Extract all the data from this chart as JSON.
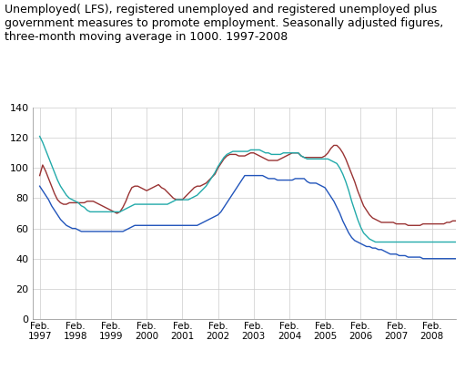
{
  "title_line1": "Unemployed( LFS), registered unemployed and registered unemployed plus",
  "title_line2": "government measures to promote employment. Seasonally adjusted figures,",
  "title_line3": "three-month moving average in 1000. 1997-2008",
  "title_fontsize": 9.0,
  "colors": {
    "registered_unemployed": "#2255BB",
    "lfs": "#993333",
    "registered_plus_gov": "#22AAAA"
  },
  "legend_labels": [
    "Registered\nunemployed",
    "Unemployed( LFS)",
    "Registered unemployed +\ngovernment measures"
  ],
  "ylim": [
    0,
    140
  ],
  "yticks": [
    0,
    20,
    40,
    60,
    80,
    100,
    120,
    140
  ],
  "grid_color": "#cccccc",
  "registered_unemployed": [
    88,
    85,
    82,
    79,
    75,
    72,
    69,
    66,
    64,
    62,
    61,
    60,
    60,
    59,
    58,
    58,
    58,
    58,
    58,
    58,
    58,
    58,
    58,
    58,
    58,
    58,
    58,
    58,
    58,
    59,
    60,
    61,
    62,
    62,
    62,
    62,
    62,
    62,
    62,
    62,
    62,
    62,
    62,
    62,
    62,
    62,
    62,
    62,
    62,
    62,
    62,
    62,
    62,
    62,
    63,
    64,
    65,
    66,
    67,
    68,
    69,
    71,
    74,
    77,
    80,
    83,
    86,
    89,
    92,
    95,
    95,
    95,
    95,
    95,
    95,
    95,
    94,
    93,
    93,
    93,
    92,
    92,
    92,
    92,
    92,
    92,
    93,
    93,
    93,
    93,
    91,
    90,
    90,
    90,
    89,
    88,
    87,
    84,
    81,
    78,
    74,
    70,
    65,
    61,
    57,
    54,
    52,
    51,
    50,
    49,
    48,
    48,
    47,
    47,
    46,
    46,
    45,
    44,
    43,
    43,
    43,
    42,
    42,
    42,
    41,
    41,
    41,
    41,
    41,
    40,
    40,
    40,
    40,
    40,
    40,
    40,
    40,
    40,
    40,
    40,
    40,
    40,
    40,
    40
  ],
  "lfs": [
    95,
    102,
    98,
    93,
    88,
    83,
    79,
    77,
    76,
    76,
    77,
    77,
    77,
    77,
    77,
    77,
    78,
    78,
    78,
    77,
    76,
    75,
    74,
    73,
    72,
    71,
    70,
    71,
    74,
    78,
    83,
    87,
    88,
    88,
    87,
    86,
    85,
    86,
    87,
    88,
    89,
    87,
    86,
    84,
    82,
    80,
    79,
    79,
    79,
    81,
    83,
    85,
    87,
    88,
    88,
    89,
    90,
    92,
    94,
    96,
    100,
    103,
    106,
    108,
    109,
    109,
    109,
    108,
    108,
    108,
    109,
    110,
    110,
    109,
    108,
    107,
    106,
    105,
    105,
    105,
    105,
    106,
    107,
    108,
    109,
    110,
    110,
    110,
    108,
    107,
    107,
    107,
    107,
    107,
    107,
    107,
    108,
    110,
    113,
    115,
    115,
    113,
    110,
    106,
    101,
    96,
    91,
    85,
    80,
    75,
    72,
    69,
    67,
    66,
    65,
    64,
    64,
    64,
    64,
    64,
    63,
    63,
    63,
    63,
    62,
    62,
    62,
    62,
    62,
    63,
    63,
    63,
    63,
    63,
    63,
    63,
    63,
    64,
    64,
    65,
    65,
    65,
    65,
    65
  ],
  "registered_plus_gov": [
    121,
    117,
    112,
    107,
    102,
    97,
    92,
    88,
    85,
    82,
    80,
    79,
    78,
    77,
    75,
    74,
    72,
    71,
    71,
    71,
    71,
    71,
    71,
    71,
    71,
    71,
    71,
    71,
    72,
    73,
    74,
    75,
    76,
    76,
    76,
    76,
    76,
    76,
    76,
    76,
    76,
    76,
    76,
    76,
    77,
    78,
    79,
    79,
    79,
    79,
    79,
    80,
    81,
    82,
    84,
    86,
    88,
    91,
    94,
    97,
    101,
    104,
    107,
    109,
    110,
    111,
    111,
    111,
    111,
    111,
    111,
    112,
    112,
    112,
    112,
    111,
    110,
    110,
    109,
    109,
    109,
    109,
    110,
    110,
    110,
    110,
    110,
    110,
    108,
    107,
    106,
    106,
    106,
    106,
    106,
    106,
    106,
    106,
    105,
    104,
    103,
    100,
    96,
    91,
    85,
    78,
    72,
    66,
    61,
    57,
    55,
    53,
    52,
    51,
    51,
    51,
    51,
    51,
    51,
    51,
    51,
    51,
    51,
    51,
    51,
    51,
    51,
    51,
    51,
    51,
    51,
    51,
    51,
    51,
    51,
    51,
    51,
    51,
    51,
    51,
    51,
    51,
    51,
    51
  ]
}
